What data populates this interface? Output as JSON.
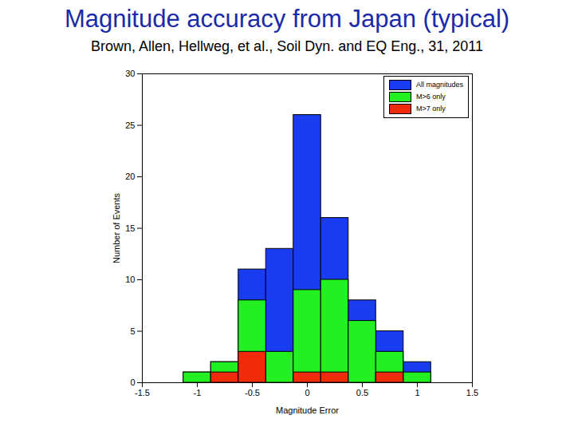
{
  "chart_data": {
    "type": "histogram",
    "title": "Magnitude accuracy from Japan (typical)",
    "subtitle": "Brown, Allen, Hellweg, et al., Soil Dyn. and EQ Eng., 31, 2011",
    "x_label": "Magnitude Error",
    "y_label": "Number of Events",
    "bins": [
      -1.125,
      -0.875,
      -0.625,
      -0.375,
      -0.125,
      0.125,
      0.375,
      0.625,
      0.875,
      1.125
    ],
    "series": [
      {
        "name": "All magnitudes",
        "color": "#1a3cf0",
        "values": [
          1,
          2,
          11,
          13,
          26,
          16,
          8,
          5,
          2
        ]
      },
      {
        "name": "M>6 only",
        "color": "#22f022",
        "values": [
          1,
          2,
          8,
          3,
          9,
          10,
          6,
          3,
          1
        ]
      },
      {
        "name": "M>7 only",
        "color": "#f02a0a",
        "values": [
          0,
          1,
          3,
          0,
          1,
          1,
          0,
          1,
          0
        ]
      }
    ],
    "xlim": [
      -1.5,
      1.5
    ],
    "ylim": [
      0,
      30
    ],
    "xticks": [
      -1.5,
      -1,
      -0.5,
      0,
      0.5,
      1,
      1.5
    ],
    "yticks": [
      0,
      5,
      10,
      15,
      20,
      25,
      30
    ],
    "grid": false,
    "legend": "top-right"
  }
}
